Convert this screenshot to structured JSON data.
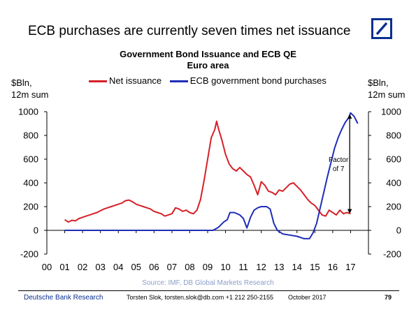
{
  "slide": {
    "headline": "ECB purchases are currently seven times net issuance",
    "footer_org": "Deutsche Bank Research",
    "footer_author": "Torsten Slok, torsten.slok@db.com  +1 212 250-2155",
    "footer_date": "October  2017",
    "page_number": "79",
    "brand_color": "#0b2f8f"
  },
  "chart_data": {
    "type": "line",
    "title": "Government Bond Issuance and ECB QE",
    "subtitle": "Euro area",
    "ylabel_left_1": "$Bln,",
    "ylabel_left_2": "12m sum",
    "ylabel_right_1": "$Bln,",
    "ylabel_right_2": "12m sum",
    "source": "Source: IMF, DB Global Markets Research",
    "ylim": [
      -200,
      1000
    ],
    "xlim": [
      0,
      18
    ],
    "yticks": [
      "-200",
      "0",
      "200",
      "400",
      "600",
      "800",
      "1000"
    ],
    "xticks": [
      "00",
      "01",
      "02",
      "03",
      "04",
      "05",
      "06",
      "07",
      "08",
      "09",
      "10",
      "11",
      "12",
      "13",
      "14",
      "15",
      "16",
      "17"
    ],
    "annotation": {
      "line1": "Factor",
      "line2": "of 7",
      "x": 16.95,
      "y_low": 160,
      "y_high": 960
    },
    "grid": false,
    "legend_position": "top",
    "series": [
      {
        "name": "Net issuance",
        "color": "#d62027",
        "points": [
          [
            1.0,
            90
          ],
          [
            1.2,
            70
          ],
          [
            1.4,
            85
          ],
          [
            1.6,
            80
          ],
          [
            1.8,
            100
          ],
          [
            2.0,
            110
          ],
          [
            2.2,
            120
          ],
          [
            2.4,
            130
          ],
          [
            2.6,
            140
          ],
          [
            2.8,
            150
          ],
          [
            3.0,
            165
          ],
          [
            3.2,
            180
          ],
          [
            3.4,
            190
          ],
          [
            3.6,
            200
          ],
          [
            3.8,
            210
          ],
          [
            4.0,
            220
          ],
          [
            4.2,
            230
          ],
          [
            4.4,
            250
          ],
          [
            4.6,
            255
          ],
          [
            4.8,
            240
          ],
          [
            5.0,
            220
          ],
          [
            5.2,
            210
          ],
          [
            5.4,
            200
          ],
          [
            5.6,
            190
          ],
          [
            5.8,
            180
          ],
          [
            6.0,
            160
          ],
          [
            6.2,
            150
          ],
          [
            6.4,
            140
          ],
          [
            6.6,
            120
          ],
          [
            6.8,
            130
          ],
          [
            7.0,
            140
          ],
          [
            7.2,
            190
          ],
          [
            7.4,
            180
          ],
          [
            7.6,
            160
          ],
          [
            7.8,
            170
          ],
          [
            8.0,
            150
          ],
          [
            8.2,
            140
          ],
          [
            8.4,
            170
          ],
          [
            8.6,
            260
          ],
          [
            8.8,
            420
          ],
          [
            9.0,
            600
          ],
          [
            9.2,
            780
          ],
          [
            9.4,
            850
          ],
          [
            9.5,
            920
          ],
          [
            9.6,
            860
          ],
          [
            9.8,
            760
          ],
          [
            10.0,
            640
          ],
          [
            10.2,
            560
          ],
          [
            10.4,
            520
          ],
          [
            10.6,
            500
          ],
          [
            10.8,
            530
          ],
          [
            11.0,
            500
          ],
          [
            11.2,
            470
          ],
          [
            11.4,
            450
          ],
          [
            11.6,
            380
          ],
          [
            11.8,
            300
          ],
          [
            12.0,
            410
          ],
          [
            12.2,
            380
          ],
          [
            12.4,
            330
          ],
          [
            12.6,
            320
          ],
          [
            12.8,
            300
          ],
          [
            13.0,
            340
          ],
          [
            13.2,
            330
          ],
          [
            13.4,
            360
          ],
          [
            13.6,
            390
          ],
          [
            13.8,
            400
          ],
          [
            14.0,
            370
          ],
          [
            14.2,
            340
          ],
          [
            14.4,
            300
          ],
          [
            14.6,
            260
          ],
          [
            14.8,
            230
          ],
          [
            15.0,
            210
          ],
          [
            15.2,
            170
          ],
          [
            15.4,
            130
          ],
          [
            15.6,
            120
          ],
          [
            15.8,
            170
          ],
          [
            16.0,
            150
          ],
          [
            16.2,
            130
          ],
          [
            16.4,
            170
          ],
          [
            16.6,
            140
          ],
          [
            16.8,
            150
          ],
          [
            17.0,
            140
          ]
        ]
      },
      {
        "name": "ECB government bond purchases",
        "color": "#1f2db8",
        "points": [
          [
            1.0,
            0
          ],
          [
            9.0,
            0
          ],
          [
            9.3,
            0
          ],
          [
            9.6,
            25
          ],
          [
            9.9,
            70
          ],
          [
            10.1,
            90
          ],
          [
            10.25,
            150
          ],
          [
            10.5,
            150
          ],
          [
            10.8,
            130
          ],
          [
            11.0,
            100
          ],
          [
            11.2,
            20
          ],
          [
            11.4,
            110
          ],
          [
            11.6,
            170
          ],
          [
            11.8,
            190
          ],
          [
            12.0,
            200
          ],
          [
            12.3,
            200
          ],
          [
            12.5,
            180
          ],
          [
            12.7,
            60
          ],
          [
            12.9,
            0
          ],
          [
            13.2,
            -30
          ],
          [
            13.6,
            -40
          ],
          [
            14.0,
            -50
          ],
          [
            14.4,
            -70
          ],
          [
            14.7,
            -70
          ],
          [
            14.9,
            -20
          ],
          [
            15.1,
            60
          ],
          [
            15.3,
            190
          ],
          [
            15.5,
            320
          ],
          [
            15.7,
            450
          ],
          [
            15.9,
            570
          ],
          [
            16.1,
            690
          ],
          [
            16.3,
            780
          ],
          [
            16.5,
            850
          ],
          [
            16.7,
            910
          ],
          [
            16.9,
            950
          ],
          [
            17.0,
            990
          ],
          [
            17.2,
            960
          ],
          [
            17.4,
            900
          ]
        ]
      }
    ]
  }
}
